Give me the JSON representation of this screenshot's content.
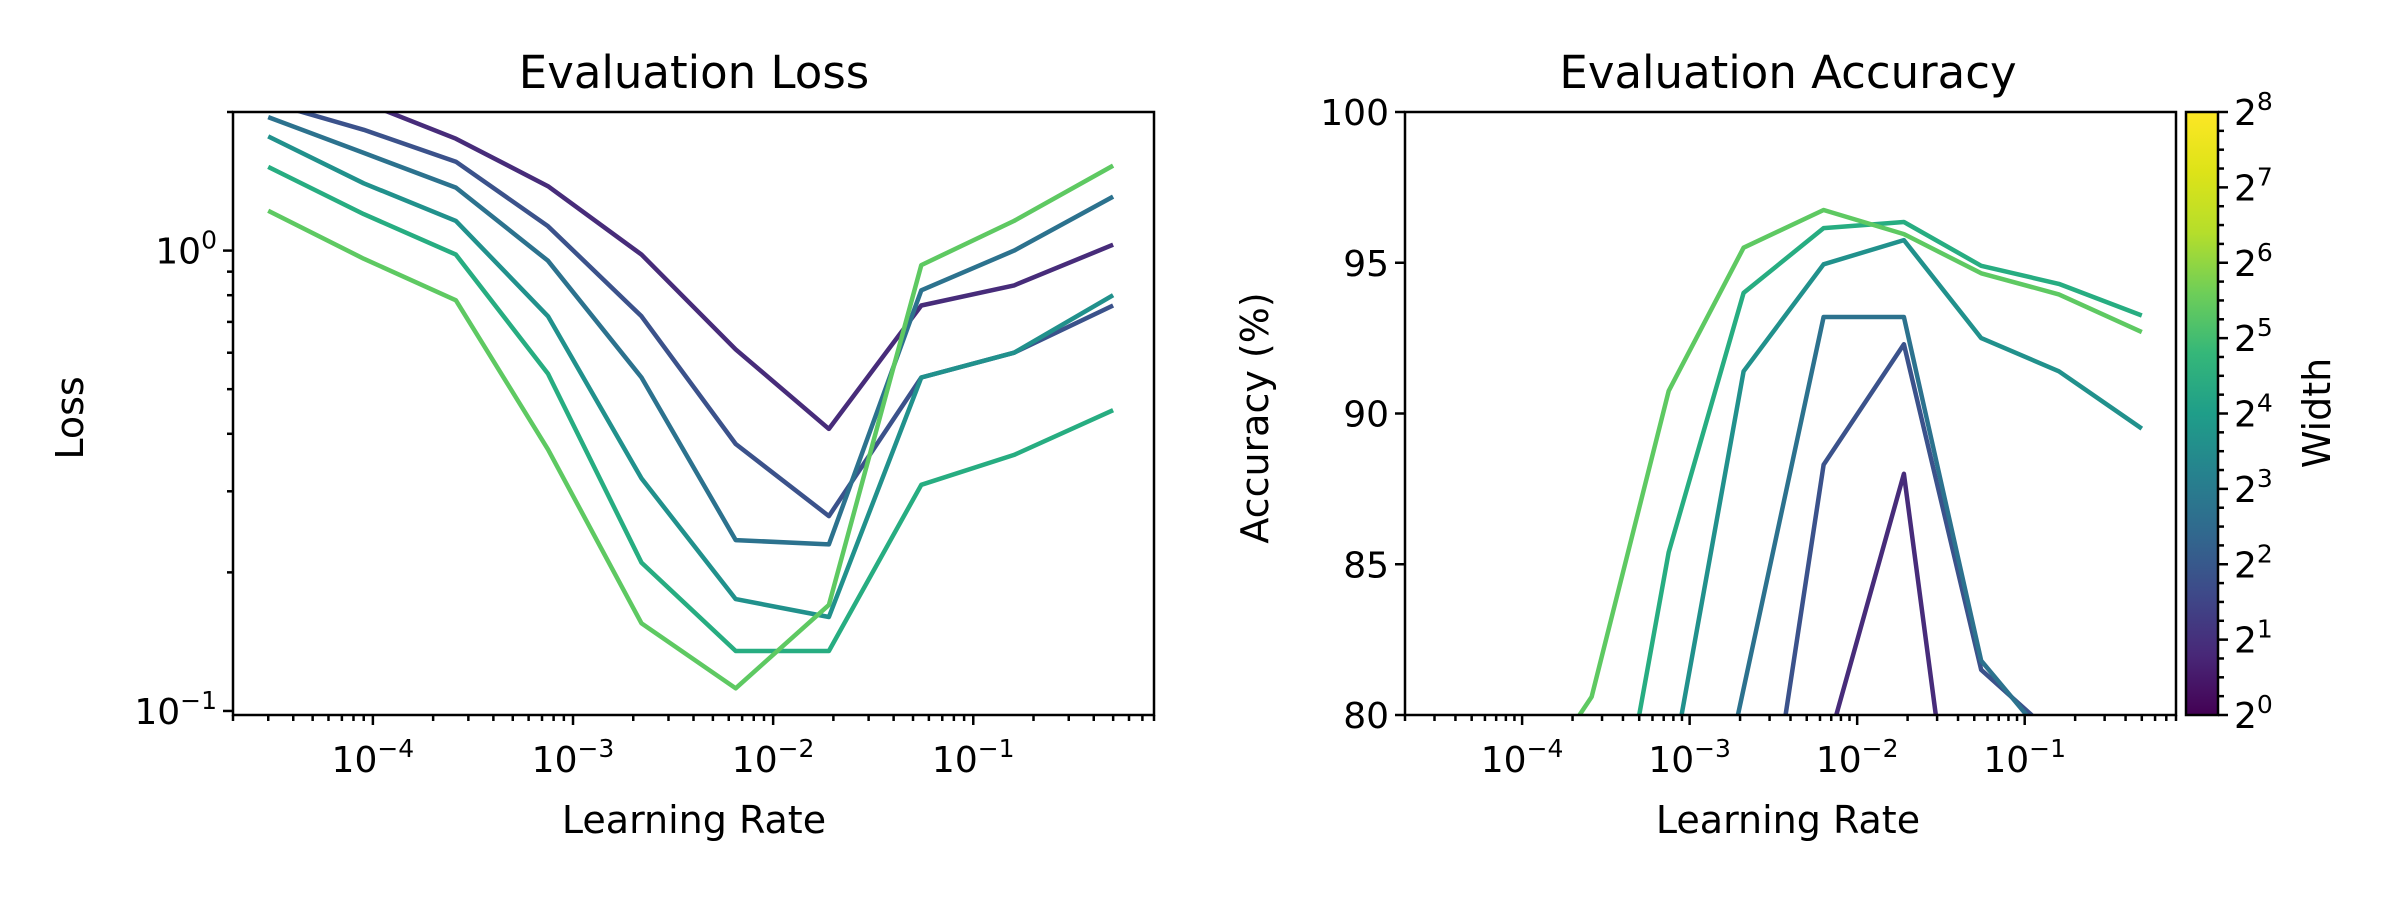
{
  "chart_data": [
    {
      "type": "line",
      "title": "Evaluation Loss",
      "xlabel": "Learning Rate",
      "ylabel": "Loss",
      "xscale": "log",
      "yscale": "log",
      "xlim": [
        2e-05,
        0.8
      ],
      "ylim": [
        0.098,
        2.0
      ],
      "x": [
        3e-05,
        9e-05,
        0.00026,
        0.00075,
        0.0022,
        0.0065,
        0.019,
        0.055,
        0.16,
        0.5
      ],
      "xticks": [
        "10^-4",
        "10^-3",
        "10^-2",
        "10^-1"
      ],
      "yticks": [
        "10^0",
        "10^-1"
      ],
      "series": [
        {
          "width": 1,
          "color": "#472c7a",
          "values": [
            2.3,
            2.1,
            1.75,
            1.38,
            0.98,
            0.61,
            0.41,
            0.76,
            0.84,
            1.03
          ]
        },
        {
          "width": 2,
          "color": "#3b528b",
          "values": [
            2.1,
            1.83,
            1.56,
            1.13,
            0.72,
            0.38,
            0.265,
            0.53,
            0.6,
            0.76
          ]
        },
        {
          "width": 3,
          "color": "#2c728e",
          "values": [
            1.95,
            1.63,
            1.37,
            0.95,
            0.53,
            0.235,
            0.23,
            0.82,
            1.0,
            1.31
          ]
        },
        {
          "width": 4,
          "color": "#21918c",
          "values": [
            1.77,
            1.4,
            1.16,
            0.72,
            0.32,
            0.175,
            0.16,
            0.53,
            0.6,
            0.8
          ]
        },
        {
          "width": 5,
          "color": "#27ad81",
          "values": [
            1.52,
            1.2,
            0.98,
            0.54,
            0.21,
            0.135,
            0.135,
            0.31,
            0.36,
            0.45
          ]
        },
        {
          "width": 6,
          "color": "#5ec962",
          "values": [
            1.22,
            0.96,
            0.78,
            0.37,
            0.155,
            0.112,
            0.17,
            0.93,
            1.16,
            1.53
          ]
        }
      ]
    },
    {
      "type": "line",
      "title": "Evaluation Accuracy",
      "xlabel": "Learning Rate",
      "ylabel": "Accuracy (%)",
      "xscale": "log",
      "xlim": [
        2e-05,
        0.8
      ],
      "ylim": [
        80,
        100
      ],
      "yticks": [
        80,
        85,
        90,
        95,
        100
      ],
      "xticks": [
        "10^-4",
        "10^-3",
        "10^-2",
        "10^-1"
      ],
      "series": [
        {
          "width": 1,
          "color": "#472c7a",
          "points": [
            [
              0.0063,
              78.5
            ],
            [
              0.019,
              88.0
            ],
            [
              0.032,
              78.5
            ]
          ]
        },
        {
          "width": 2,
          "color": "#3b528b",
          "points": [
            [
              0.0034,
              78.5
            ],
            [
              0.0063,
              88.3
            ],
            [
              0.019,
              92.3
            ],
            [
              0.055,
              81.5
            ],
            [
              0.11,
              80.0
            ],
            [
              0.16,
              78.5
            ]
          ]
        },
        {
          "width": 3,
          "color": "#2c728e",
          "points": [
            [
              0.0017,
              78.5
            ],
            [
              0.0063,
              93.2
            ],
            [
              0.019,
              93.2
            ],
            [
              0.055,
              81.8
            ],
            [
              0.11,
              79.8
            ]
          ]
        },
        {
          "width": 4,
          "color": "#21918c",
          "points": [
            [
              0.0008,
              78.5
            ],
            [
              0.0021,
              91.4
            ],
            [
              0.0063,
              94.95
            ],
            [
              0.019,
              95.75
            ],
            [
              0.055,
              92.5
            ],
            [
              0.16,
              91.4
            ],
            [
              0.5,
              89.5
            ]
          ]
        },
        {
          "width": 5,
          "color": "#27ad81",
          "points": [
            [
              0.0005,
              80.0
            ],
            [
              0.00075,
              85.4
            ],
            [
              0.0021,
              94.0
            ],
            [
              0.0063,
              96.15
            ],
            [
              0.019,
              96.35
            ],
            [
              0.055,
              94.9
            ],
            [
              0.16,
              94.3
            ],
            [
              0.5,
              93.25
            ]
          ]
        },
        {
          "width": 6,
          "color": "#5ec962",
          "points": [
            [
              0.00022,
              80.0
            ],
            [
              0.00026,
              80.6
            ],
            [
              0.00075,
              90.75
            ],
            [
              0.0021,
              95.5
            ],
            [
              0.0063,
              96.75
            ],
            [
              0.019,
              95.95
            ],
            [
              0.055,
              94.65
            ],
            [
              0.16,
              93.95
            ],
            [
              0.5,
              92.7
            ]
          ]
        },
        {
          "width": 7,
          "color": "#a0da39",
          "points": []
        }
      ],
      "colorbar": {
        "label": "Width",
        "ticks": [
          "2^0",
          "2^1",
          "2^2",
          "2^3",
          "2^4",
          "2^5",
          "2^6",
          "2^7",
          "2^8"
        ],
        "colormap": "viridis"
      }
    }
  ]
}
